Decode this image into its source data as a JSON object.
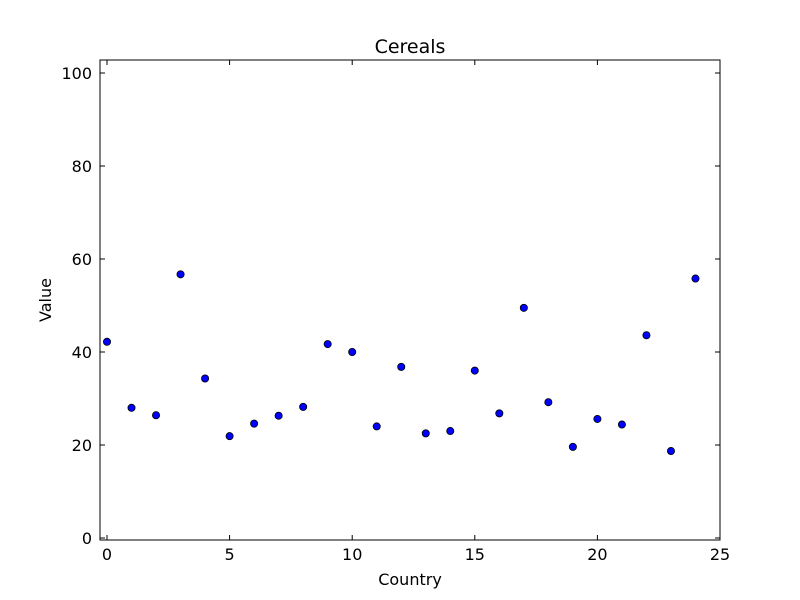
{
  "chart_data": {
    "type": "scatter",
    "title": "Cereals",
    "xlabel": "Country",
    "ylabel": "Value",
    "xlim": [
      0,
      25
    ],
    "ylim": [
      0,
      100
    ],
    "xticks": [
      0,
      5,
      10,
      15,
      20,
      25
    ],
    "yticks": [
      0,
      20,
      40,
      60,
      80,
      100
    ],
    "grid": false,
    "marker_color": "#0000ff",
    "x": [
      0,
      1,
      2,
      3,
      4,
      5,
      6,
      7,
      8,
      9,
      10,
      11,
      12,
      13,
      14,
      15,
      16,
      17,
      18,
      19,
      20,
      21,
      22,
      23,
      24
    ],
    "y": [
      42.2,
      28.0,
      26.4,
      56.7,
      34.3,
      21.9,
      24.6,
      26.3,
      28.2,
      41.7,
      40.0,
      24.0,
      36.8,
      22.5,
      23.0,
      36.0,
      26.8,
      49.5,
      29.2,
      19.6,
      25.6,
      24.4,
      43.6,
      18.7,
      55.8
    ]
  }
}
